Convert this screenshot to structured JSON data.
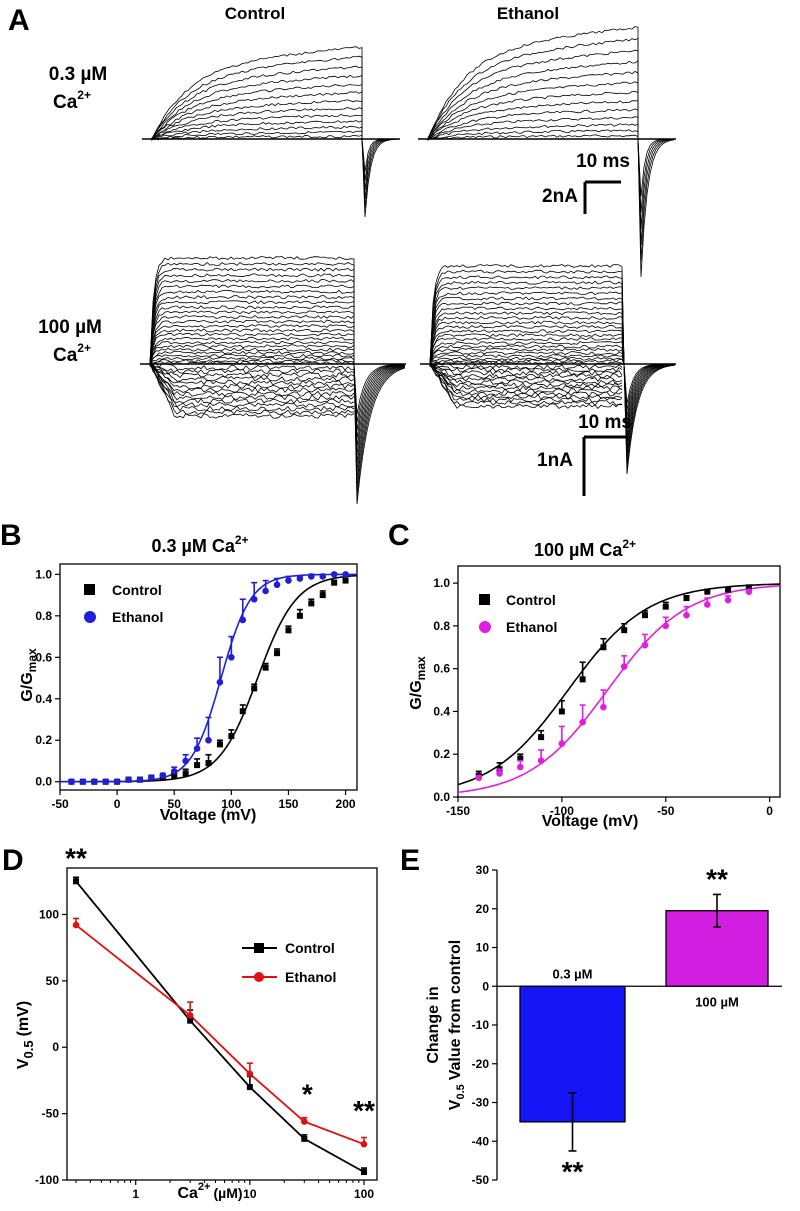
{
  "panel_a": {
    "letter": "A",
    "col_control": "Control",
    "col_ethanol": "Ethanol",
    "row1_conc": "0.3 µM",
    "row1_ion": "Ca",
    "row1_sup": "2+",
    "row2_conc": "100 µM",
    "row2_ion": "Ca",
    "row2_sup": "2+",
    "scale1_time": "10 ms",
    "scale1_current": "2nA",
    "scale2_time": "10 ms",
    "scale2_current": "1nA"
  },
  "chart_data": [
    {
      "id": "B",
      "type": "scatter",
      "letter": "B",
      "title": "0.3 µM Ca",
      "title_sup": "2+",
      "xlabel": "Voltage (mV)",
      "ylabel": "G/G",
      "ylabel_sub": "max",
      "xlim": [
        -50,
        210
      ],
      "ylim": [
        -0.04,
        1.05
      ],
      "xticks": [
        -50,
        0,
        50,
        100,
        150,
        200
      ],
      "yticks": [
        0.0,
        0.2,
        0.4,
        0.6,
        0.8,
        1.0
      ],
      "yticklabels": [
        "0.0",
        "0.2",
        "0.4",
        "0.6",
        "0.8",
        "1.0"
      ],
      "legend_position": "top-left",
      "series": [
        {
          "name": "Control",
          "color": "#000000",
          "marker": "square",
          "x": [
            -40,
            -30,
            -20,
            -10,
            0,
            10,
            20,
            30,
            40,
            50,
            60,
            70,
            80,
            90,
            100,
            110,
            120,
            130,
            140,
            150,
            160,
            170,
            180,
            190,
            200
          ],
          "y": [
            0.0,
            0.0,
            0.0,
            0.0,
            0.0,
            0.01,
            0.01,
            0.02,
            0.02,
            0.03,
            0.04,
            0.08,
            0.09,
            0.18,
            0.22,
            0.34,
            0.45,
            0.55,
            0.62,
            0.73,
            0.8,
            0.86,
            0.9,
            0.96,
            0.97
          ],
          "err": [
            0.005,
            0.005,
            0.005,
            0.005,
            0.005,
            0.01,
            0.01,
            0.01,
            0.01,
            0.01,
            0.02,
            0.03,
            0.04,
            0.02,
            0.03,
            0.03,
            0.02,
            0.02,
            0.02,
            0.02,
            0.03,
            0.02,
            0.02,
            0.01,
            0.01
          ]
        },
        {
          "name": "Ethanol",
          "color": "#1f1fd6",
          "marker": "circle",
          "x": [
            -40,
            -30,
            -20,
            -10,
            0,
            10,
            20,
            30,
            40,
            50,
            60,
            70,
            80,
            90,
            100,
            110,
            120,
            130,
            140,
            150,
            160,
            170,
            180,
            190,
            200
          ],
          "y": [
            0.0,
            0.0,
            0.0,
            0.0,
            0.0,
            0.01,
            0.01,
            0.02,
            0.03,
            0.05,
            0.1,
            0.16,
            0.2,
            0.48,
            0.6,
            0.78,
            0.88,
            0.92,
            0.95,
            0.97,
            0.98,
            0.99,
            0.99,
            1.0,
            1.0
          ],
          "err": [
            0.005,
            0.005,
            0.005,
            0.005,
            0.005,
            0.01,
            0.01,
            0.01,
            0.01,
            0.02,
            0.03,
            0.05,
            0.11,
            0.12,
            0.1,
            0.1,
            0.08,
            0.05,
            0.03,
            0.02,
            0.01,
            0.01,
            0.01,
            0.005,
            0.005
          ]
        }
      ],
      "fits": [
        {
          "name": "Control",
          "v_half": 123,
          "slope": 17
        },
        {
          "name": "Ethanol",
          "v_half": 91,
          "slope": 13
        }
      ]
    },
    {
      "id": "C",
      "type": "scatter",
      "letter": "C",
      "title": "100 µM Ca",
      "title_sup": "2+",
      "xlabel": "Voltage (mV)",
      "ylabel": "G/G",
      "ylabel_sub": "max",
      "xlim": [
        -150,
        5
      ],
      "ylim": [
        0.0,
        1.08
      ],
      "xticks": [
        -150,
        -100,
        -50,
        0
      ],
      "yticks": [
        0.0,
        0.2,
        0.4,
        0.6,
        0.8,
        1.0
      ],
      "yticklabels": [
        "0.0",
        "0.2",
        "0.4",
        "0.6",
        "0.8",
        "1.0"
      ],
      "legend_position": "top-left",
      "series": [
        {
          "name": "Control",
          "color": "#000000",
          "marker": "square",
          "x": [
            -140,
            -130,
            -120,
            -110,
            -100,
            -90,
            -80,
            -70,
            -60,
            -50,
            -40,
            -30,
            -20,
            -10
          ],
          "y": [
            0.1,
            0.13,
            0.18,
            0.28,
            0.4,
            0.55,
            0.7,
            0.78,
            0.85,
            0.89,
            0.93,
            0.96,
            0.97,
            0.98
          ],
          "err": [
            0.02,
            0.03,
            0.02,
            0.03,
            0.05,
            0.08,
            0.04,
            0.03,
            0.02,
            0.02,
            0.01,
            0.01,
            0.01,
            0.01
          ]
        },
        {
          "name": "Ethanol",
          "color": "#e01ee0",
          "marker": "circle",
          "x": [
            -140,
            -130,
            -120,
            -110,
            -100,
            -90,
            -80,
            -70,
            -60,
            -50,
            -40,
            -30,
            -20,
            -10
          ],
          "y": [
            0.09,
            0.11,
            0.14,
            0.17,
            0.25,
            0.35,
            0.42,
            0.61,
            0.71,
            0.8,
            0.85,
            0.9,
            0.92,
            0.96
          ],
          "err": [
            0.01,
            0.02,
            0.03,
            0.05,
            0.08,
            0.08,
            0.08,
            0.05,
            0.05,
            0.04,
            0.04,
            0.03,
            0.02,
            0.01
          ]
        }
      ],
      "fits": [
        {
          "name": "Control",
          "v_half": -97,
          "slope": 19
        },
        {
          "name": "Ethanol",
          "v_half": -78,
          "slope": 19
        }
      ]
    },
    {
      "id": "D",
      "type": "line",
      "letter": "D",
      "xlabel": "Ca",
      "xlabel_sup": "2+",
      "xlabel_unit": "(µM)",
      "ylabel": "V",
      "ylabel_sub": "0.5",
      "ylabel_unit": "(mV)",
      "x_scale": "log",
      "xlim": [
        0.25,
        130
      ],
      "ylim": [
        -100,
        135
      ],
      "xticks": [
        1,
        10,
        100
      ],
      "yticks": [
        -100,
        -50,
        0,
        50,
        100
      ],
      "legend_position": "top-right",
      "series": [
        {
          "name": "Control",
          "color": "#000000",
          "marker": "square",
          "x": [
            0.3,
            3,
            10,
            30,
            100
          ],
          "y": [
            125,
            20,
            -30,
            -69,
            -94
          ],
          "err": [
            3,
            8,
            8,
            3,
            3
          ]
        },
        {
          "name": "Ethanol",
          "color": "#e01010",
          "marker": "circle",
          "x": [
            0.3,
            3,
            10,
            30,
            100
          ],
          "y": [
            92,
            24,
            -20,
            -56,
            -73
          ],
          "err": [
            5,
            10,
            8,
            3,
            5
          ]
        }
      ],
      "annotations": [
        {
          "text": "**",
          "x": 0.3,
          "y": 125
        },
        {
          "text": "*",
          "x": 30,
          "y": -56
        },
        {
          "text": "**",
          "x": 100,
          "y": -73
        }
      ]
    },
    {
      "id": "E",
      "type": "bar",
      "letter": "E",
      "ylabel_line1": "Change in",
      "ylabel_line2": "V",
      "ylabel_sub": "0.5",
      "ylabel_line2_rest": "Value from control",
      "ylim": [
        -50,
        30
      ],
      "yticks": [
        -50,
        -40,
        -30,
        -20,
        -10,
        0,
        10,
        20,
        30
      ],
      "categories": [
        "0.3 µM",
        "100 µM"
      ],
      "values": [
        -35,
        19.5
      ],
      "errors": [
        7.5,
        4.2
      ],
      "colors": [
        "#1515f5",
        "#d21ee0"
      ],
      "significance": [
        "**",
        "**"
      ]
    }
  ]
}
